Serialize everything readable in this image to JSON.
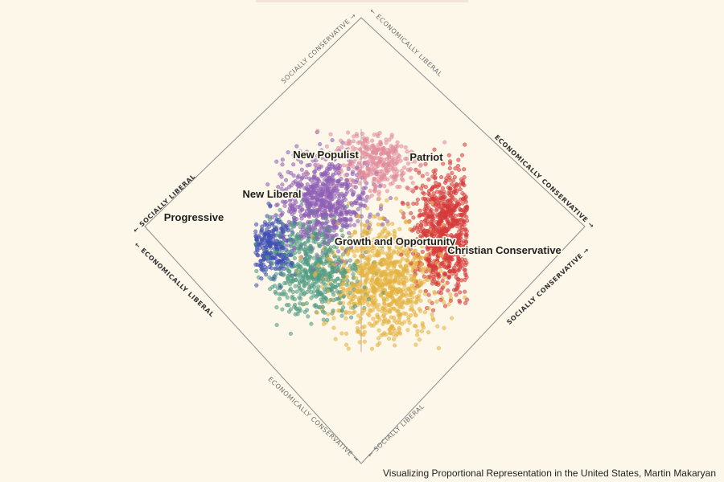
{
  "caption": "Visualizing Proportional Representation in the United States, Martin Makaryan",
  "chart_data": {
    "type": "scatter",
    "axes": {
      "economic": {
        "low": "ECONOMICALLY LIBERAL",
        "high": "ECONOMICALLY CONSERVATIVE"
      },
      "social": {
        "low": "SOCIALLY LIBERAL",
        "high": "SOCIALLY CONSERVATIVE"
      }
    },
    "axis_labels": [
      "SOCIALLY CONSERVATIVE",
      "ECONOMICALLY LIBERAL",
      "ECONOMICALLY CONSERVATIVE",
      "SOCIALLY LIBERAL",
      "ECONOMICALLY LIBERAL",
      "SOCIALLY CONSERVATIVE",
      "ECONOMICALLY CONSERVATIVE",
      "SOCIALLY LIBERAL"
    ],
    "clusters": [
      {
        "name": "Progressive",
        "color": "#3f4fb5",
        "count": 240,
        "center": [
          0.08,
          0.45
        ],
        "spread": [
          0.055,
          0.07
        ]
      },
      {
        "name": "New Liberal",
        "color": "#4e9b83",
        "count": 600,
        "center": [
          0.28,
          0.37
        ],
        "spread": [
          0.11,
          0.11
        ]
      },
      {
        "name": "New Populist",
        "color": "#8e5fb6",
        "count": 700,
        "center": [
          0.33,
          0.66
        ],
        "spread": [
          0.1,
          0.1
        ]
      },
      {
        "name": "Patriot",
        "color": "#e08a9c",
        "count": 340,
        "center": [
          0.57,
          0.86
        ],
        "spread": [
          0.1,
          0.075
        ]
      },
      {
        "name": "Growth and Opportunity",
        "color": "#e4b33f",
        "count": 900,
        "center": [
          0.6,
          0.33
        ],
        "spread": [
          0.12,
          0.13
        ]
      },
      {
        "name": "Christian Conservative",
        "color": "#d63a3a",
        "count": 800,
        "center": [
          0.89,
          0.57
        ],
        "spread": [
          0.07,
          0.13
        ]
      }
    ],
    "grid": "quadrant-dividers",
    "legend": "none"
  }
}
